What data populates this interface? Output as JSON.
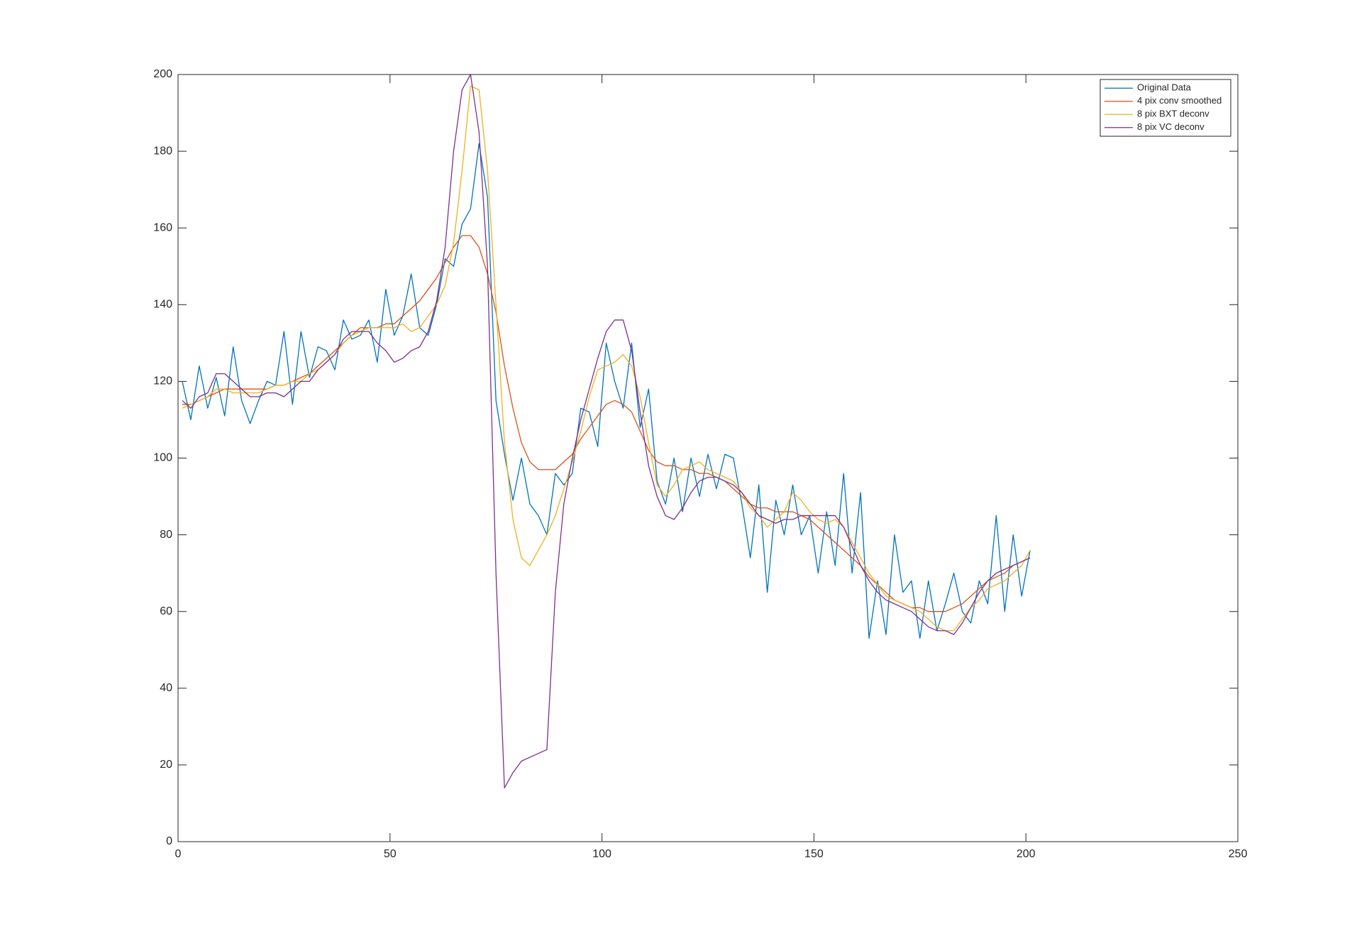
{
  "chart_data": {
    "type": "line",
    "x": [
      1,
      3,
      5,
      7,
      9,
      11,
      13,
      15,
      17,
      19,
      21,
      23,
      25,
      27,
      29,
      31,
      33,
      35,
      37,
      39,
      41,
      43,
      45,
      47,
      49,
      51,
      53,
      55,
      57,
      59,
      61,
      63,
      65,
      67,
      69,
      71,
      73,
      75,
      77,
      79,
      81,
      83,
      85,
      87,
      89,
      91,
      93,
      95,
      97,
      99,
      101,
      103,
      105,
      107,
      109,
      111,
      113,
      115,
      117,
      119,
      121,
      123,
      125,
      127,
      129,
      131,
      133,
      135,
      137,
      139,
      141,
      143,
      145,
      147,
      149,
      151,
      153,
      155,
      157,
      159,
      161,
      163,
      165,
      167,
      169,
      171,
      173,
      175,
      177,
      179,
      181,
      183,
      185,
      187,
      189,
      191,
      193,
      195,
      197,
      199,
      201
    ],
    "series": [
      {
        "name": "Original Data",
        "color": "#0072BD",
        "values": [
          120,
          110,
          124,
          113,
          121,
          111,
          129,
          115,
          109,
          115,
          120,
          119,
          133,
          114,
          133,
          121,
          129,
          128,
          123,
          136,
          131,
          132,
          136,
          125,
          144,
          132,
          137,
          148,
          134,
          132,
          140,
          152,
          150,
          161,
          165,
          182,
          168,
          115,
          101,
          89,
          100,
          88,
          85,
          80,
          96,
          93,
          96,
          113,
          112,
          103,
          130,
          120,
          113,
          130,
          108,
          118,
          94,
          88,
          100,
          86,
          100,
          90,
          101,
          92,
          101,
          100,
          88,
          74,
          93,
          65,
          89,
          80,
          93,
          80,
          85,
          70,
          86,
          72,
          96,
          70,
          91,
          53,
          68,
          54,
          80,
          65,
          68,
          53,
          68,
          55,
          62,
          70,
          60,
          57,
          68,
          62,
          85,
          60,
          80,
          64,
          76
        ]
      },
      {
        "name": "4 pix conv smoothed",
        "color": "#D95319",
        "values": [
          114,
          114,
          115,
          116,
          117,
          118,
          118,
          118,
          118,
          118,
          118,
          119,
          119,
          120,
          121,
          122,
          124,
          126,
          128,
          130,
          132,
          134,
          134,
          134,
          135,
          135,
          137,
          139,
          141,
          144,
          147,
          151,
          155,
          158,
          158,
          155,
          148,
          138,
          124,
          113,
          104,
          99,
          97,
          97,
          97,
          99,
          101,
          105,
          108,
          111,
          114,
          115,
          114,
          112,
          107,
          102,
          99,
          98,
          98,
          97,
          97,
          96,
          96,
          95,
          94,
          92,
          90,
          88,
          87,
          87,
          86,
          86,
          86,
          85,
          84,
          82,
          80,
          78,
          76,
          74,
          72,
          69,
          67,
          65,
          63,
          62,
          61,
          61,
          60,
          60,
          60,
          61,
          62,
          64,
          66,
          68,
          69,
          70,
          72,
          73,
          74
        ]
      },
      {
        "name": "8 pix BXT deconv",
        "color": "#EDB120",
        "values": [
          113,
          114,
          115,
          116,
          118,
          118,
          117,
          117,
          117,
          117,
          118,
          119,
          119,
          120,
          120,
          122,
          123,
          125,
          127,
          130,
          132,
          133,
          134,
          134,
          134,
          134,
          135,
          133,
          134,
          137,
          140,
          145,
          156,
          175,
          197,
          196,
          175,
          140,
          104,
          84,
          74,
          72,
          76,
          80,
          85,
          92,
          99,
          107,
          116,
          123,
          124,
          125,
          127,
          124,
          116,
          104,
          93,
          90,
          93,
          97,
          98,
          99,
          97,
          96,
          95,
          94,
          91,
          87,
          85,
          82,
          84,
          86,
          91,
          89,
          86,
          84,
          83,
          84,
          82,
          78,
          74,
          70,
          67,
          64,
          63,
          62,
          61,
          60,
          58,
          56,
          55,
          55,
          58,
          61,
          63,
          66,
          67,
          68,
          70,
          72,
          76
        ]
      },
      {
        "name": "8 pix VC deconv",
        "color": "#7E2F8E",
        "values": [
          115,
          113,
          116,
          117,
          122,
          122,
          120,
          118,
          116,
          116,
          117,
          117,
          116,
          118,
          120,
          120,
          123,
          125,
          127,
          131,
          133,
          133,
          133,
          130,
          128,
          125,
          126,
          128,
          129,
          133,
          141,
          155,
          180,
          196,
          200,
          185,
          150,
          70,
          14,
          18,
          21,
          22,
          23,
          24,
          65,
          88,
          100,
          110,
          118,
          126,
          133,
          136,
          136,
          128,
          112,
          98,
          90,
          85,
          84,
          87,
          91,
          94,
          95,
          95,
          94,
          93,
          91,
          88,
          85,
          84,
          83,
          84,
          84,
          85,
          85,
          85,
          85,
          85,
          82,
          77,
          72,
          68,
          65,
          63,
          62,
          61,
          60,
          58,
          56,
          55,
          55,
          54,
          57,
          61,
          65,
          68,
          70,
          71,
          72,
          73,
          74
        ]
      }
    ],
    "xlim": [
      0,
      250
    ],
    "xticks": [
      0,
      50,
      100,
      150,
      200,
      250
    ],
    "ylim": [
      0,
      200
    ],
    "yticks": [
      0,
      20,
      40,
      60,
      80,
      100,
      120,
      140,
      160,
      180,
      200
    ],
    "legend": "top-right"
  }
}
